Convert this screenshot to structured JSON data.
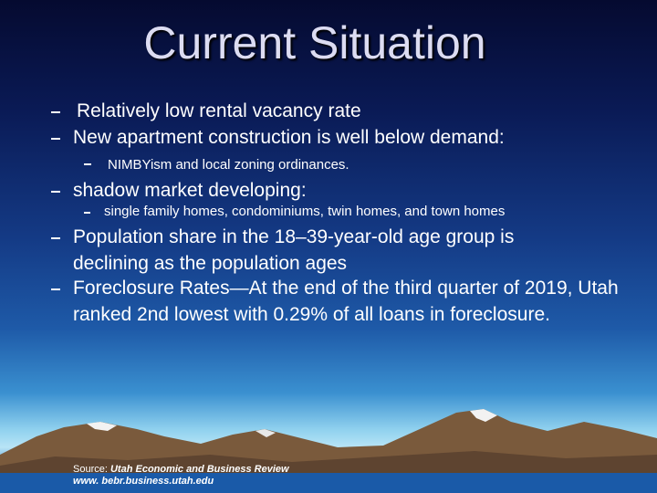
{
  "title": "Current Situation",
  "bullets": [
    {
      "text": "Relatively low rental vacancy rate"
    },
    {
      "text": "New apartment construction is well below demand:",
      "sub": [
        "NIMBYism and local zoning ordinances."
      ]
    },
    {
      "text": "shadow market developing:",
      "sub": [
        "single family homes, condominiums, twin homes, and town homes"
      ]
    },
    {
      "text": "Population share in the 18–39-year-old age group is declining as the population ages"
    },
    {
      "text": "Foreclosure Rates—At the end of the third quarter of 2019, Utah ranked 2nd lowest with 0.29% of all loans in foreclosure."
    }
  ],
  "source": {
    "label": "Source:",
    "publication": "Utah Economic and Business Review",
    "url": "www. bebr.business.utah.edu"
  }
}
